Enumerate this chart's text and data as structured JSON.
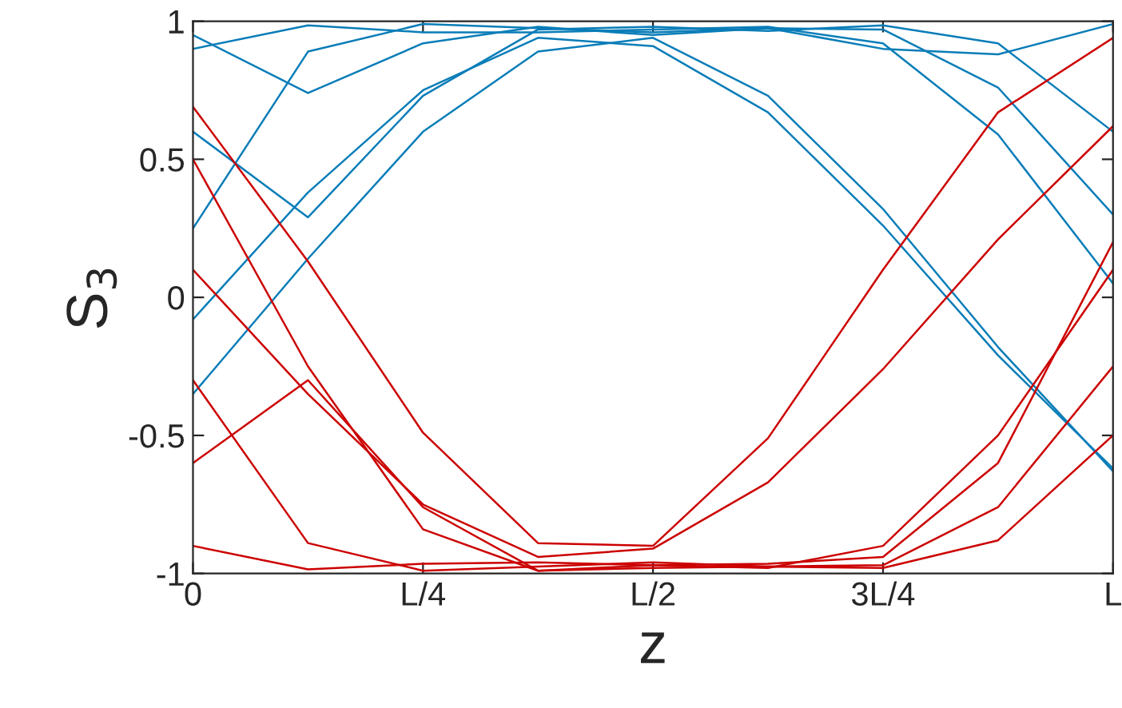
{
  "chart_data": {
    "type": "line",
    "xlabel": "z",
    "ylabel": "S$_{3}$",
    "categories": [
      "0",
      null,
      "L/4",
      null,
      "L/2",
      null,
      "3L/4",
      null,
      "L"
    ],
    "ylim": [
      -1,
      1
    ],
    "yticks": [
      -1,
      -0.5,
      0,
      0.5,
      1
    ],
    "grid": false,
    "legend": false,
    "marker": "none",
    "line_style": "solid",
    "series": [
      {
        "color": "#0a7db8",
        "values": [
          -0.35,
          0.14,
          0.6,
          0.89,
          0.94,
          0.73,
          0.32,
          -0.18,
          -0.63
        ]
      },
      {
        "color": "#0a7db8",
        "values": [
          -0.08,
          0.38,
          0.75,
          0.94,
          0.91,
          0.67,
          0.26,
          -0.21,
          -0.62
        ]
      },
      {
        "color": "#0a7db8",
        "values": [
          0.25,
          0.89,
          0.99,
          0.975,
          0.96,
          0.975,
          0.97,
          0.76,
          0.3
        ]
      },
      {
        "color": "#0a7db8",
        "values": [
          0.9,
          0.985,
          0.96,
          0.96,
          0.97,
          0.98,
          0.92,
          0.59,
          0.05
        ]
      },
      {
        "color": "#0a7db8",
        "values": [
          0.6,
          0.29,
          0.73,
          0.97,
          0.98,
          0.965,
          0.985,
          0.92,
          0.6
        ]
      },
      {
        "color": "#0a7db8",
        "values": [
          0.95,
          0.74,
          0.92,
          0.98,
          0.95,
          0.975,
          0.9,
          0.88,
          0.99
        ]
      },
      {
        "color": "#cc0000",
        "values": [
          0.69,
          0.13,
          -0.49,
          -0.89,
          -0.9,
          -0.51,
          0.1,
          0.67,
          0.94
        ]
      },
      {
        "color": "#cc0000",
        "values": [
          0.1,
          -0.35,
          -0.75,
          -0.94,
          -0.91,
          -0.67,
          -0.26,
          0.21,
          0.62
        ]
      },
      {
        "color": "#cc0000",
        "values": [
          -0.3,
          -0.89,
          -0.99,
          -0.975,
          -0.96,
          -0.975,
          -0.97,
          -0.76,
          -0.25
        ]
      },
      {
        "color": "#cc0000",
        "values": [
          0.5,
          -0.25,
          -0.84,
          -0.99,
          -0.97,
          -0.965,
          -0.94,
          -0.6,
          0.2
        ]
      },
      {
        "color": "#cc0000",
        "values": [
          -0.9,
          -0.985,
          -0.965,
          -0.96,
          -0.97,
          -0.98,
          -0.9,
          -0.5,
          0.1
        ]
      },
      {
        "color": "#cc0000",
        "values": [
          -0.6,
          -0.3,
          -0.76,
          -0.99,
          -0.98,
          -0.975,
          -0.98,
          -0.88,
          -0.5
        ]
      }
    ]
  }
}
